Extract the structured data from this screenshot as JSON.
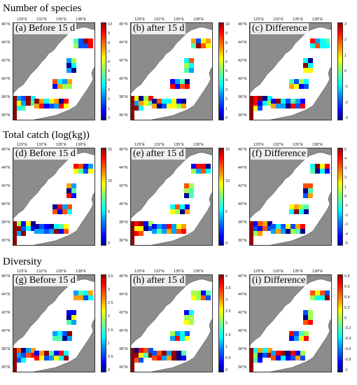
{
  "rows": [
    {
      "title": "Number of species",
      "panels": [
        {
          "label": "(a) Before 15 d",
          "colorbar": [
            "10",
            "9",
            "8",
            "7",
            "6",
            "5",
            "4",
            "3",
            "2",
            "1",
            "0"
          ]
        },
        {
          "label": "(b) after 15 d",
          "colorbar": [
            "10",
            "9",
            "8",
            "7",
            "6",
            "5",
            "4",
            "3",
            "2",
            "1",
            "0"
          ]
        },
        {
          "label": "(c) Difference",
          "colorbar": [
            "3",
            "2",
            "1",
            "0",
            "-1",
            "-2",
            "-3"
          ]
        }
      ]
    },
    {
      "title": "Total catch (log(kg))",
      "panels": [
        {
          "label": "(d) Before 15 d",
          "colorbar": [
            "15",
            "10",
            "5",
            "0"
          ]
        },
        {
          "label": "(e) after 15 d",
          "colorbar": [
            "15",
            "10",
            "5",
            "0"
          ]
        },
        {
          "label": "(f) Difference",
          "colorbar": [
            "5",
            "4",
            "3",
            "2",
            "1",
            "0",
            "-1",
            "-2",
            "-3",
            "-4",
            "-5"
          ]
        }
      ]
    },
    {
      "title": "Diversity",
      "panels": [
        {
          "label": "(g) Before 15 d",
          "colorbar": [
            "3.5",
            "3",
            "2.5",
            "2",
            "1.5",
            "1",
            "0.5",
            "0"
          ]
        },
        {
          "label": "(h) after 15 d",
          "colorbar": [
            "4",
            "3.5",
            "3",
            "2.5",
            "2",
            "1.5",
            "1",
            "0.5",
            "0"
          ]
        },
        {
          "label": "(i) Difference",
          "colorbar": [
            "0.8",
            "0.6",
            "0.4",
            "0.2",
            "0",
            "-0.2",
            "-0.4",
            "-0.6",
            "-0.8",
            "-1"
          ]
        }
      ]
    }
  ],
  "lon_ticks": [
    "129°E",
    "132°E",
    "135°E",
    "138°E"
  ],
  "lat_ticks": [
    "46°N",
    "44°N",
    "42°N",
    "40°N",
    "38°N",
    "36°N"
  ],
  "colors": {
    "land": "#8c8c8c",
    "sea": "#ffffff"
  }
}
